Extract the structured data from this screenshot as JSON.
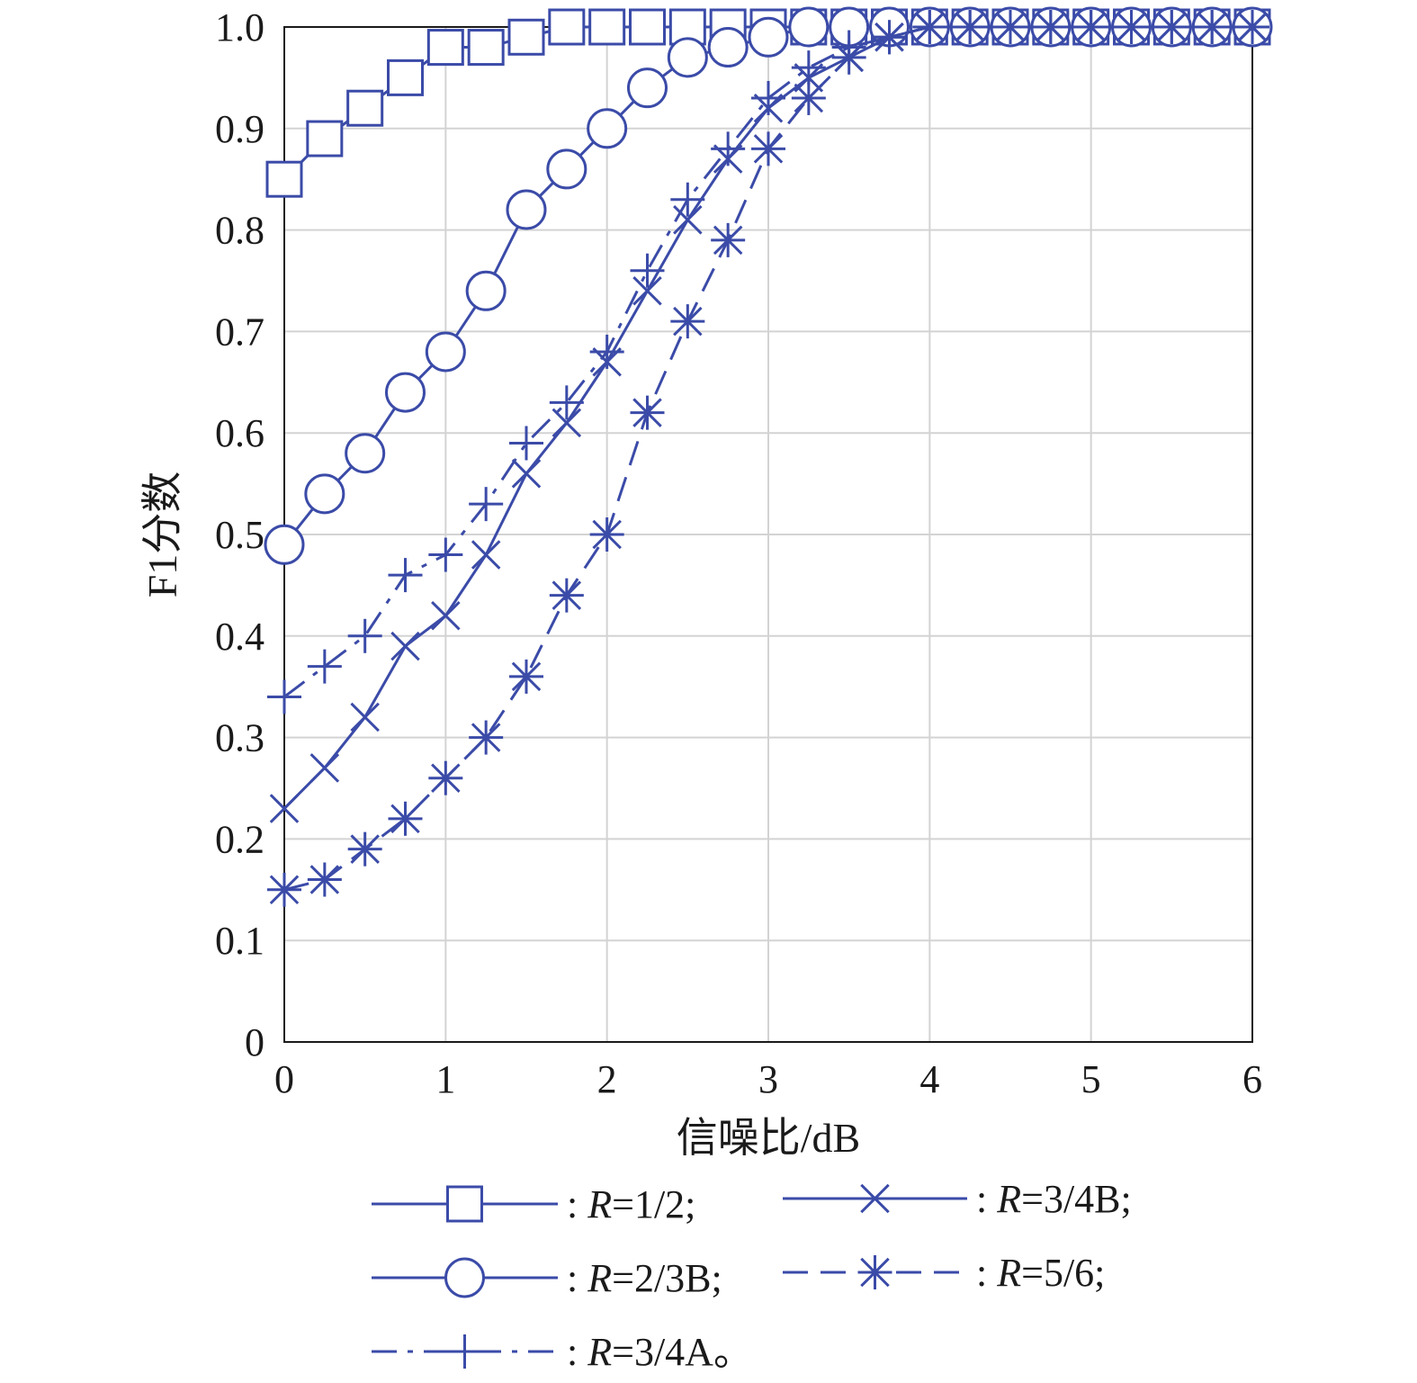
{
  "chart_data": {
    "type": "line",
    "xlabel": "信噪比/dB",
    "ylabel": "F1分数",
    "xlim": [
      0,
      6
    ],
    "ylim": [
      0,
      1.0
    ],
    "xticks": [
      0,
      1,
      2,
      3,
      4,
      5,
      6
    ],
    "xtick_labels": [
      "0",
      "1",
      "2",
      "3",
      "4",
      "5",
      "6"
    ],
    "yticks": [
      0,
      0.1,
      0.2,
      0.3,
      0.4,
      0.5,
      0.6,
      0.7,
      0.8,
      0.9,
      1.0
    ],
    "ytick_labels": [
      "0",
      "0.1",
      "0.2",
      "0.3",
      "0.4",
      "0.5",
      "0.6",
      "0.7",
      "0.8",
      "0.9",
      "1.0"
    ],
    "grid": true,
    "legend_position": "bottom",
    "line_color": "#3b4ba8",
    "x": [
      0,
      0.25,
      0.5,
      0.75,
      1,
      1.25,
      1.5,
      1.75,
      2,
      2.25,
      2.5,
      2.75,
      3,
      3.25,
      3.5,
      3.75,
      4,
      4.25,
      4.5,
      4.75,
      5,
      5.25,
      5.5,
      5.75,
      6
    ],
    "series": [
      {
        "id": "r12",
        "legend_prefix": ": ",
        "legend_var": "R",
        "legend_value": "=1/2;",
        "marker": "square",
        "dash": "solid",
        "values": [
          0.85,
          0.89,
          0.92,
          0.95,
          0.98,
          0.98,
          0.99,
          1.0,
          1.0,
          1.0,
          1.0,
          1.0,
          1.0,
          1.0,
          1.0,
          1.0,
          1.0,
          1.0,
          1.0,
          1.0,
          1.0,
          1.0,
          1.0,
          1.0,
          1.0
        ]
      },
      {
        "id": "r23b",
        "legend_prefix": ": ",
        "legend_var": "R",
        "legend_value": "=2/3B;",
        "marker": "circle",
        "dash": "solid",
        "values": [
          0.49,
          0.54,
          0.58,
          0.64,
          0.68,
          0.74,
          0.82,
          0.86,
          0.9,
          0.94,
          0.97,
          0.98,
          0.99,
          1.0,
          1.0,
          1.0,
          1.0,
          1.0,
          1.0,
          1.0,
          1.0,
          1.0,
          1.0,
          1.0,
          1.0
        ]
      },
      {
        "id": "r34a",
        "legend_prefix": ": ",
        "legend_var": "R",
        "legend_value": "=3/4A。",
        "marker": "plus",
        "dash": "dashdot",
        "values": [
          0.34,
          0.37,
          0.4,
          0.46,
          0.48,
          0.53,
          0.59,
          0.63,
          0.68,
          0.76,
          0.83,
          0.88,
          0.93,
          0.96,
          0.98,
          0.99,
          1.0,
          1.0,
          1.0,
          1.0,
          1.0,
          1.0,
          1.0,
          1.0,
          1.0
        ]
      },
      {
        "id": "r34b",
        "legend_prefix": ": ",
        "legend_var": "R",
        "legend_value": "=3/4B;",
        "marker": "x",
        "dash": "solid",
        "values": [
          0.23,
          0.27,
          0.32,
          0.39,
          0.42,
          0.48,
          0.56,
          0.61,
          0.67,
          0.74,
          0.81,
          0.87,
          0.92,
          0.95,
          0.97,
          0.99,
          1.0,
          1.0,
          1.0,
          1.0,
          1.0,
          1.0,
          1.0,
          1.0,
          1.0
        ]
      },
      {
        "id": "r56",
        "legend_prefix": ": ",
        "legend_var": "R",
        "legend_value": "=5/6;",
        "marker": "asterisk",
        "dash": "dashed",
        "values": [
          0.15,
          0.16,
          0.19,
          0.22,
          0.26,
          0.3,
          0.36,
          0.44,
          0.5,
          0.62,
          0.71,
          0.79,
          0.88,
          0.93,
          0.97,
          0.99,
          1.0,
          1.0,
          1.0,
          1.0,
          1.0,
          1.0,
          1.0,
          1.0,
          1.0
        ]
      }
    ]
  }
}
